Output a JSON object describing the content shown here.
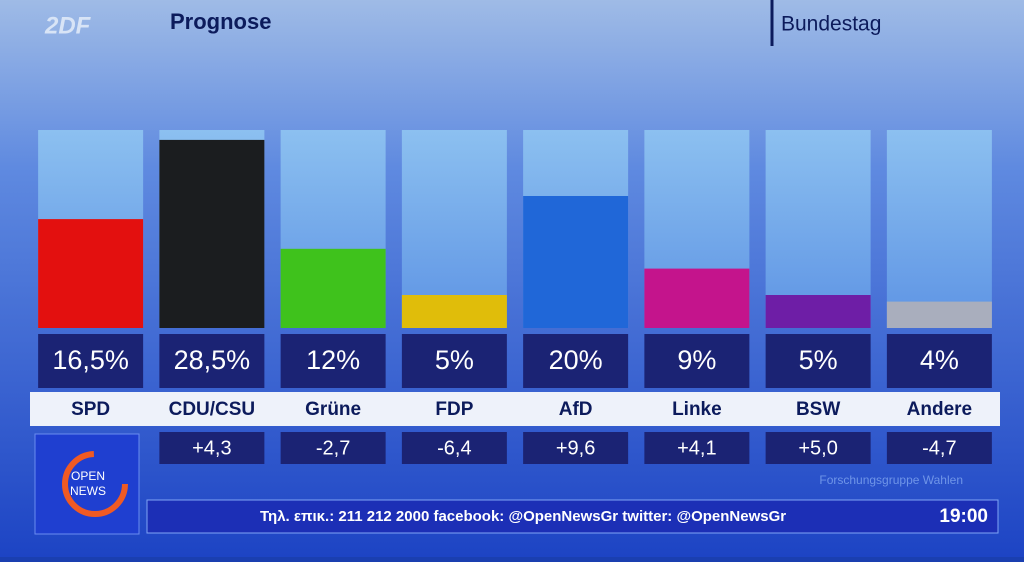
{
  "chart_data": {
    "type": "bar",
    "title": "Prognose",
    "subtitle": "Bundestag",
    "logo": "2DF",
    "categories": [
      "SPD",
      "CDU/CSU",
      "Grüne",
      "FDP",
      "AfD",
      "Linke",
      "BSW",
      "Andere"
    ],
    "values": [
      16.5,
      28.5,
      12,
      5,
      20,
      9,
      5,
      4
    ],
    "value_labels": [
      "16,5%",
      "28,5%",
      "12%",
      "5%",
      "20%",
      "9%",
      "5%",
      "4%"
    ],
    "changes": [
      null,
      "+4,3",
      "-2,7",
      "-6,4",
      "+9,6",
      "+4,1",
      "+5,0",
      "-4,7"
    ],
    "colors": [
      "#e3100f",
      "#1b1d1f",
      "#3fc21c",
      "#e0bd0a",
      "#2067d8",
      "#c4148c",
      "#6e1ea6",
      "#a9aebd"
    ],
    "ylim": [
      0,
      30
    ],
    "source": "Forschungsgruppe Wahlen",
    "ticker": "Τηλ. επικ.: 211 212 2000 facebook: @OpenNewsGr twitter: @OpenNewsGr",
    "time": "19:00",
    "channel_logo": [
      "OPEN",
      "NEWS"
    ]
  }
}
